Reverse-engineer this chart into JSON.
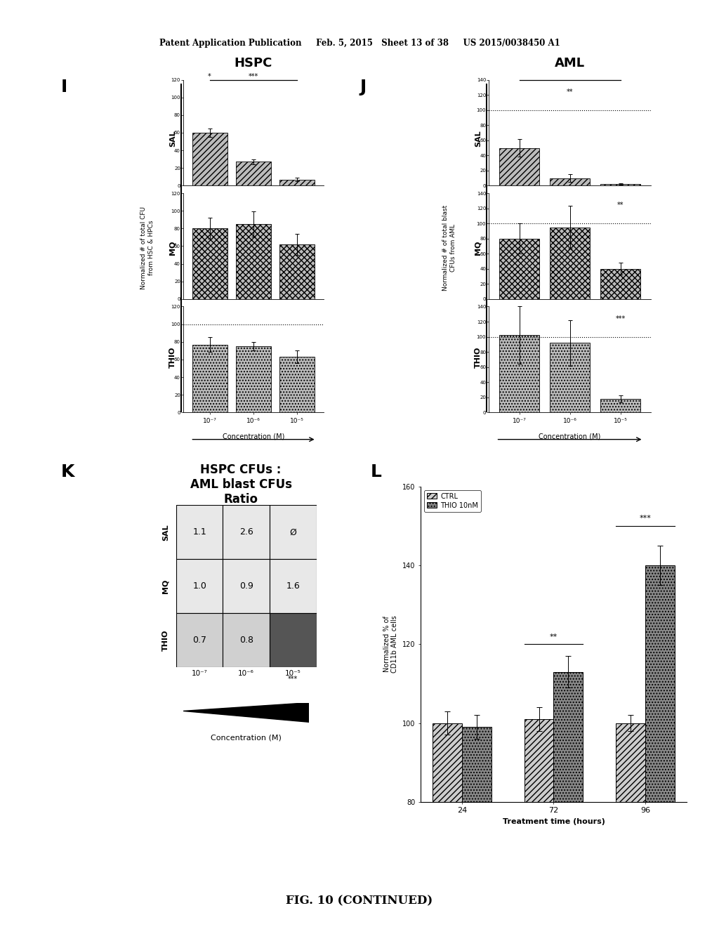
{
  "header_text": "Patent Application Publication     Feb. 5, 2015   Sheet 13 of 38     US 2015/0038450 A1",
  "footer_text": "FIG. 10 (CONTINUED)",
  "panel_I": {
    "title": "HSPC",
    "label": "I",
    "ylabel_line1": "Normalized # of total CFU",
    "ylabel_line2": "from HSC & HPCs",
    "xlabel": "Concentration (M)",
    "x_labels": [
      "10⁻⁷",
      "10⁻⁶",
      "10⁻⁵"
    ],
    "SAL_values": [
      60,
      27,
      7
    ],
    "SAL_errors": [
      5,
      3,
      2
    ],
    "MQ_values": [
      80,
      85,
      62
    ],
    "MQ_errors": [
      12,
      14,
      12
    ],
    "THIO_values": [
      77,
      75,
      63
    ],
    "THIO_errors": [
      8,
      5,
      7
    ],
    "ylim": [
      0,
      120
    ],
    "yticks": [
      0,
      20,
      40,
      60,
      80,
      100,
      120
    ],
    "dotted_line_THIO": 100
  },
  "panel_J": {
    "title": "AML",
    "label": "J",
    "ylabel_line1": "Normalized # of total blast",
    "ylabel_line2": "CFUs from AML",
    "xlabel": "Concentration (M)",
    "x_labels": [
      "10⁻⁷",
      "10⁻⁶",
      "10⁻⁵"
    ],
    "SAL_values": [
      50,
      10,
      2
    ],
    "SAL_errors": [
      12,
      5,
      1
    ],
    "MQ_values": [
      80,
      95,
      40
    ],
    "MQ_errors": [
      20,
      28,
      8
    ],
    "THIO_values": [
      102,
      92,
      18
    ],
    "THIO_errors": [
      38,
      30,
      5
    ],
    "ylim": [
      0,
      140
    ],
    "yticks": [
      0,
      20,
      40,
      60,
      80,
      100,
      120,
      140
    ],
    "dotted_line_SAL": 100,
    "dotted_line_MQ": 100,
    "dotted_line_THIO": 100
  },
  "panel_K": {
    "title_line1": "HSPC CFUs :",
    "title_line2": "AML blast CFUs",
    "title_line3": "Ratio",
    "label": "K",
    "xlabel": "Concentration (M)",
    "x_labels": [
      "10⁻⁷",
      "10⁻⁶",
      "10⁻⁵"
    ],
    "row_labels": [
      "SAL",
      "MQ",
      "THIO"
    ],
    "SAL_values": [
      "1.1",
      "2.6",
      "Ø"
    ],
    "MQ_values": [
      "1.0",
      "0.9",
      "1.6"
    ],
    "THIO_values": [
      "0.7",
      "0.8",
      ""
    ],
    "cell_colors_SAL": [
      "#e8e8e8",
      "#e8e8e8",
      "#e8e8e8"
    ],
    "cell_colors_MQ": [
      "#e8e8e8",
      "#e8e8e8",
      "#e8e8e8"
    ],
    "cell_colors_THIO": [
      "#d0d0d0",
      "#d0d0d0",
      "#555555"
    ]
  },
  "panel_L": {
    "label": "L",
    "xlabel": "Treatment time (hours)",
    "ylabel_line1": "Normalized % of",
    "ylabel_line2": "CD11b AML cells",
    "x_values": [
      24,
      72,
      96
    ],
    "CTRL_values": [
      100,
      101,
      100
    ],
    "CTRL_errors": [
      3,
      3,
      2
    ],
    "THIO_values": [
      99,
      113,
      140
    ],
    "THIO_errors": [
      3,
      4,
      5
    ],
    "ylim": [
      80,
      160
    ],
    "yticks": [
      80,
      100,
      120,
      140,
      160
    ],
    "legend_CTRL": "CTRL",
    "legend_THIO": "THIO 10nM",
    "bar_color_CTRL": "#cccccc",
    "bar_color_THIO": "#888888"
  }
}
